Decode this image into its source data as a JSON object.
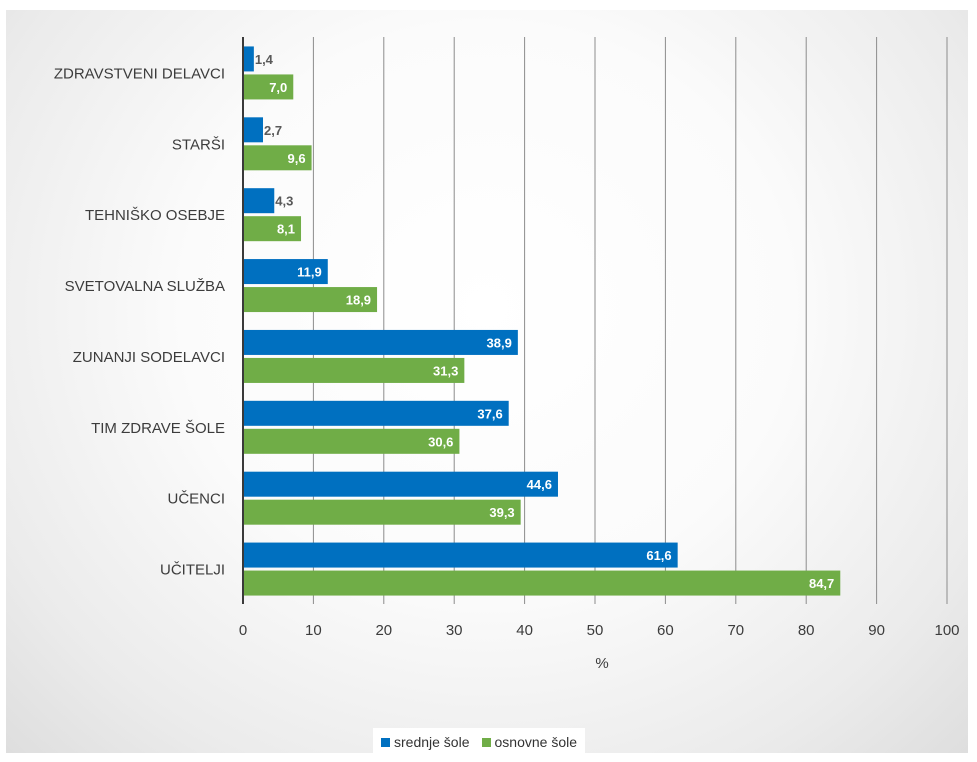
{
  "chart_data": {
    "type": "bar",
    "orientation": "horizontal",
    "categories": [
      "ZDRAVSTVENI DELAVCI",
      "STARŠI",
      "TEHNIŠKO OSEBJE",
      "SVETOVALNA SLUŽBA",
      "ZUNANJI SODELAVCI",
      "TIM ZDRAVE ŠOLE",
      "UČENCI",
      "UČITELJI"
    ],
    "series": [
      {
        "name": "srednje šole",
        "color": "#0070c0",
        "values": [
          1.4,
          2.7,
          4.3,
          11.9,
          38.9,
          37.6,
          44.6,
          61.6
        ],
        "labels": [
          "1,4",
          "2,7",
          "4,3",
          "11,9",
          "38,9",
          "37,6",
          "44,6",
          "61,6"
        ]
      },
      {
        "name": "osnovne šole",
        "color": "#70ad47",
        "values": [
          7.0,
          9.6,
          8.1,
          18.9,
          31.3,
          30.6,
          39.3,
          84.7
        ],
        "labels": [
          "7,0",
          "9,6",
          "8,1",
          "18,9",
          "31,3",
          "30,6",
          "39,3",
          "84,7"
        ]
      }
    ],
    "xlabel": "%",
    "ylabel": "",
    "xlim": [
      0,
      100
    ],
    "xticks": [
      "0",
      "10",
      "20",
      "30",
      "40",
      "50",
      "60",
      "70",
      "80",
      "90",
      "100"
    ],
    "grid": true,
    "legend_position": "bottom"
  }
}
